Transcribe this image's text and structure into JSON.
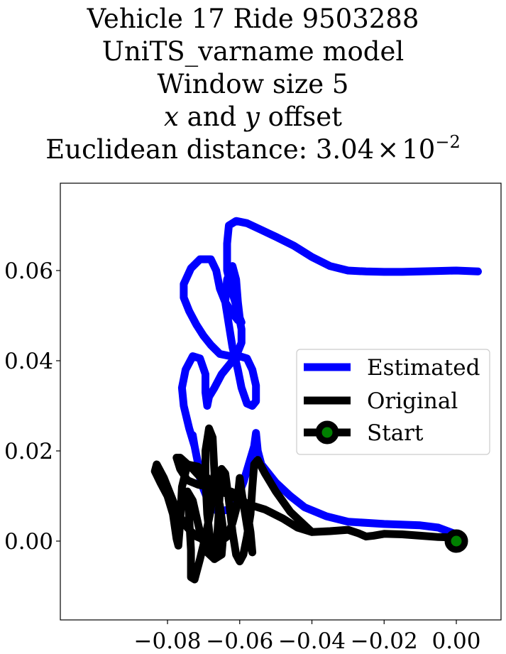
{
  "chart_data": {
    "type": "line",
    "title_lines": [
      "Vehicle 17 Ride 9503288",
      "UniTS_varname model",
      "Window size 5"
    ],
    "title_offset": {
      "x": "x",
      "and": " and ",
      "y": "y",
      "rest": " offset"
    },
    "title_metric": {
      "text": "Euclidean distance: 3.04",
      "times": "×",
      "base": "10",
      "exponent": "−2"
    },
    "xlabel": "",
    "ylabel": "",
    "xlim": [
      -0.087,
      0.01
    ],
    "ylim": [
      -0.0175,
      0.0795
    ],
    "xticks": [
      -0.08,
      -0.06,
      -0.04,
      -0.02,
      0.0
    ],
    "xtick_labels": [
      "−0.08",
      "−0.06",
      "−0.04",
      "−0.02",
      "0.00"
    ],
    "yticks": [
      0.0,
      0.02,
      0.04,
      0.06
    ],
    "ytick_labels": [
      "0.00",
      "0.02",
      "0.04",
      "0.06"
    ],
    "grid": false,
    "legend_position": "center-right",
    "series": [
      {
        "name": "Estimated",
        "color": "#0000ff",
        "points": [
          [
            0.0,
            0.0015
          ],
          [
            -0.005,
            0.003
          ],
          [
            -0.01,
            0.0035
          ],
          [
            -0.02,
            0.0038
          ],
          [
            -0.03,
            0.0043
          ],
          [
            -0.036,
            0.0055
          ],
          [
            -0.042,
            0.0075
          ],
          [
            -0.046,
            0.01
          ],
          [
            -0.05,
            0.013
          ],
          [
            -0.052,
            0.015
          ],
          [
            -0.054,
            0.017
          ],
          [
            -0.055,
            0.02
          ],
          [
            -0.0555,
            0.024
          ],
          [
            -0.056,
            0.021
          ],
          [
            -0.0575,
            0.017
          ],
          [
            -0.059,
            0.013
          ],
          [
            -0.061,
            0.009
          ],
          [
            -0.063,
            0.007
          ],
          [
            -0.066,
            0.0065
          ],
          [
            -0.0685,
            0.0085
          ],
          [
            -0.07,
            0.0115
          ],
          [
            -0.071,
            0.014
          ],
          [
            -0.0715,
            0.017
          ],
          [
            -0.0725,
            0.021
          ],
          [
            -0.073,
            0.0235
          ],
          [
            -0.0725,
            0.021
          ],
          [
            -0.074,
            0.025
          ],
          [
            -0.0755,
            0.03
          ],
          [
            -0.076,
            0.034
          ],
          [
            -0.075,
            0.038
          ],
          [
            -0.073,
            0.041
          ],
          [
            -0.071,
            0.0405
          ],
          [
            -0.0695,
            0.037
          ],
          [
            -0.0695,
            0.033
          ],
          [
            -0.069,
            0.03
          ],
          [
            -0.0685,
            0.032
          ],
          [
            -0.067,
            0.034
          ],
          [
            -0.065,
            0.037
          ],
          [
            -0.0625,
            0.0395
          ],
          [
            -0.06,
            0.041
          ],
          [
            -0.058,
            0.0405
          ],
          [
            -0.0565,
            0.038
          ],
          [
            -0.0555,
            0.0345
          ],
          [
            -0.0555,
            0.031
          ],
          [
            -0.0565,
            0.03
          ],
          [
            -0.058,
            0.0305
          ],
          [
            -0.0595,
            0.034
          ],
          [
            -0.0605,
            0.038
          ],
          [
            -0.062,
            0.043
          ],
          [
            -0.063,
            0.048
          ],
          [
            -0.064,
            0.053
          ],
          [
            -0.0635,
            0.058
          ],
          [
            -0.062,
            0.061
          ],
          [
            -0.061,
            0.058
          ],
          [
            -0.0605,
            0.053
          ],
          [
            -0.06,
            0.0495
          ],
          [
            -0.0595,
            0.0485
          ],
          [
            -0.0605,
            0.049
          ],
          [
            -0.062,
            0.0505
          ],
          [
            -0.064,
            0.053
          ],
          [
            -0.0655,
            0.056
          ],
          [
            -0.0665,
            0.06
          ],
          [
            -0.068,
            0.0625
          ],
          [
            -0.071,
            0.0625
          ],
          [
            -0.0735,
            0.0605
          ],
          [
            -0.0755,
            0.057
          ],
          [
            -0.0755,
            0.054
          ],
          [
            -0.074,
            0.051
          ],
          [
            -0.072,
            0.048
          ],
          [
            -0.07,
            0.0455
          ],
          [
            -0.068,
            0.0435
          ],
          [
            -0.0655,
            0.0415
          ],
          [
            -0.0625,
            0.041
          ],
          [
            -0.0605,
            0.042
          ],
          [
            -0.0595,
            0.044
          ],
          [
            -0.0595,
            0.047
          ],
          [
            -0.0605,
            0.051
          ],
          [
            -0.062,
            0.055
          ],
          [
            -0.0635,
            0.06
          ],
          [
            -0.0635,
            0.066
          ],
          [
            -0.063,
            0.07
          ],
          [
            -0.061,
            0.071
          ],
          [
            -0.058,
            0.0705
          ],
          [
            -0.054,
            0.069
          ],
          [
            -0.05,
            0.0675
          ],
          [
            -0.045,
            0.0655
          ],
          [
            -0.04,
            0.063
          ],
          [
            -0.035,
            0.061
          ],
          [
            -0.03,
            0.06
          ],
          [
            -0.025,
            0.0598
          ],
          [
            -0.02,
            0.0597
          ],
          [
            -0.015,
            0.0597
          ],
          [
            -0.01,
            0.0598
          ],
          [
            -0.005,
            0.0599
          ],
          [
            0.0,
            0.06
          ],
          [
            0.006,
            0.0598
          ]
        ]
      },
      {
        "name": "Original",
        "color": "#000000",
        "points": [
          [
            0.0,
            0.0008
          ],
          [
            -0.005,
            0.0009
          ],
          [
            -0.01,
            0.0012
          ],
          [
            -0.015,
            0.0015
          ],
          [
            -0.02,
            0.0016
          ],
          [
            -0.023,
            0.0012
          ],
          [
            -0.025,
            0.001
          ],
          [
            -0.027,
            0.0017
          ],
          [
            -0.03,
            0.0025
          ],
          [
            -0.035,
            0.0022
          ],
          [
            -0.04,
            0.002
          ],
          [
            -0.042,
            0.0035
          ],
          [
            -0.046,
            0.0065
          ],
          [
            -0.05,
            0.011
          ],
          [
            -0.053,
            0.015
          ],
          [
            -0.055,
            0.018
          ],
          [
            -0.056,
            0.017
          ],
          [
            -0.0565,
            0.012
          ],
          [
            -0.057,
            0.006
          ],
          [
            -0.058,
            0.001
          ],
          [
            -0.059,
            -0.003
          ],
          [
            -0.06,
            -0.0045
          ],
          [
            -0.061,
            -0.003
          ],
          [
            -0.062,
            0.002
          ],
          [
            -0.063,
            0.009
          ],
          [
            -0.064,
            0.015
          ],
          [
            -0.065,
            0.016
          ],
          [
            -0.0655,
            0.011
          ],
          [
            -0.066,
            0.004
          ],
          [
            -0.0665,
            -0.002
          ],
          [
            -0.067,
            -0.004
          ],
          [
            -0.068,
            -0.001
          ],
          [
            -0.069,
            0.006
          ],
          [
            -0.0695,
            0.014
          ],
          [
            -0.0695,
            0.02
          ],
          [
            -0.0685,
            0.025
          ],
          [
            -0.0675,
            0.023
          ],
          [
            -0.067,
            0.015
          ],
          [
            -0.068,
            0.007
          ],
          [
            -0.0695,
            0.001
          ],
          [
            -0.071,
            -0.004
          ],
          [
            -0.0725,
            -0.0085
          ],
          [
            -0.0735,
            -0.008
          ],
          [
            -0.0735,
            -0.002
          ],
          [
            -0.074,
            0.005
          ],
          [
            -0.0745,
            0.011
          ],
          [
            -0.073,
            0.009
          ],
          [
            -0.071,
            0.002
          ],
          [
            -0.069,
            -0.0025
          ],
          [
            -0.067,
            -0.004
          ],
          [
            -0.065,
            -0.003
          ],
          [
            -0.0645,
            0.002
          ],
          [
            -0.0655,
            0.008
          ],
          [
            -0.067,
            0.012
          ],
          [
            -0.069,
            0.014
          ],
          [
            -0.0715,
            0.0165
          ],
          [
            -0.0745,
            0.017
          ],
          [
            -0.076,
            0.012
          ],
          [
            -0.0765,
            0.004
          ],
          [
            -0.077,
            -0.001
          ],
          [
            -0.0775,
            0.0005
          ],
          [
            -0.0785,
            0.006
          ],
          [
            -0.08,
            0.01
          ],
          [
            -0.082,
            0.013
          ],
          [
            -0.0835,
            0.0155
          ],
          [
            -0.083,
            0.017
          ],
          [
            -0.081,
            0.014
          ],
          [
            -0.079,
            0.01
          ],
          [
            -0.077,
            0.006
          ],
          [
            -0.0745,
            0.003
          ],
          [
            -0.072,
            0.001
          ],
          [
            -0.069,
            0.0
          ],
          [
            -0.066,
            -0.0005
          ],
          [
            -0.0635,
            0.001
          ],
          [
            -0.062,
            0.004
          ],
          [
            -0.061,
            0.007
          ],
          [
            -0.0605,
            0.01
          ],
          [
            -0.06,
            0.014
          ],
          [
            -0.0595,
            0.011
          ],
          [
            -0.0585,
            0.006
          ],
          [
            -0.0575,
            0.001
          ],
          [
            -0.0565,
            -0.0025
          ],
          [
            -0.057,
            0.002
          ],
          [
            -0.058,
            0.007
          ],
          [
            -0.0595,
            0.01
          ],
          [
            -0.0625,
            0.011
          ],
          [
            -0.0655,
            0.0115
          ],
          [
            -0.0685,
            0.012
          ],
          [
            -0.0715,
            0.0125
          ],
          [
            -0.0745,
            0.0135
          ],
          [
            -0.0765,
            0.016
          ],
          [
            -0.0775,
            0.0185
          ],
          [
            -0.0765,
            0.0185
          ],
          [
            -0.073,
            0.016
          ],
          [
            -0.069,
            0.0125
          ],
          [
            -0.065,
            0.011
          ],
          [
            -0.061,
            0.0095
          ],
          [
            -0.057,
            0.008
          ],
          [
            -0.053,
            0.007
          ],
          [
            -0.048,
            0.005
          ],
          [
            -0.044,
            0.003
          ],
          [
            -0.04,
            0.002
          ]
        ]
      }
    ],
    "start": {
      "name": "Start",
      "x": 0.0,
      "y": 0.0,
      "line_color": "#000000",
      "marker_face": "#008000",
      "marker_edge": "#000000"
    }
  }
}
